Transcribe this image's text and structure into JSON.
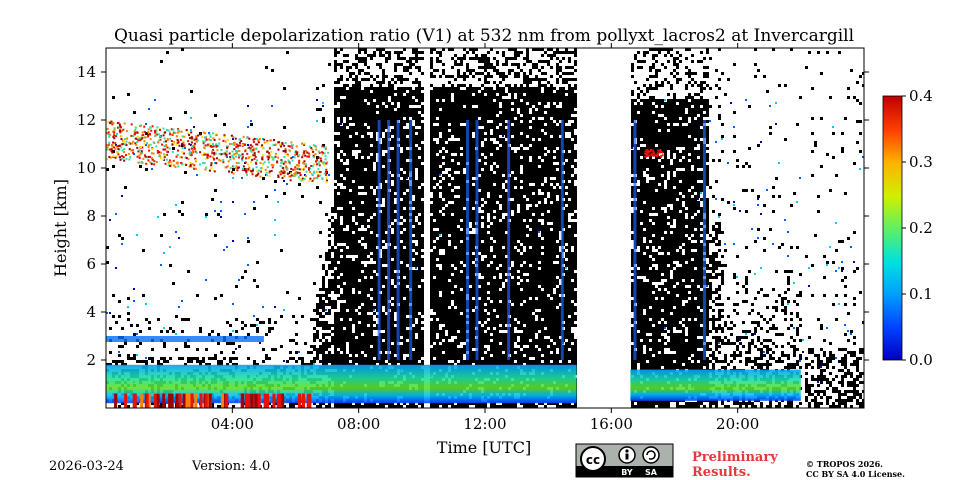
{
  "chart_data": {
    "type": "heatmap",
    "title": "Quasi particle depolarization ratio (V1) at 532 nm from pollyxt_lacros2 at Invercargill",
    "xlabel": "Time [UTC]",
    "ylabel": "Height [km]",
    "xlim_hours": [
      0,
      24
    ],
    "ylim_km": [
      0,
      15
    ],
    "x_ticks": [
      {
        "value": 4,
        "label": "04:00"
      },
      {
        "value": 8,
        "label": "08:00"
      },
      {
        "value": 12,
        "label": "12:00"
      },
      {
        "value": 16,
        "label": "16:00"
      },
      {
        "value": 20,
        "label": "20:00"
      }
    ],
    "y_ticks": [
      {
        "value": 2,
        "label": "2"
      },
      {
        "value": 4,
        "label": "4"
      },
      {
        "value": 6,
        "label": "6"
      },
      {
        "value": 8,
        "label": "8"
      },
      {
        "value": 10,
        "label": "10"
      },
      {
        "value": 12,
        "label": "12"
      },
      {
        "value": 14,
        "label": "14"
      }
    ],
    "colorbar": {
      "range": [
        0.0,
        0.4
      ],
      "ticks": [
        {
          "value": 0.0,
          "label": "0.0"
        },
        {
          "value": 0.1,
          "label": "0.1"
        },
        {
          "value": 0.2,
          "label": "0.2"
        },
        {
          "value": 0.3,
          "label": "0.3"
        },
        {
          "value": 0.4,
          "label": "0.4"
        }
      ],
      "colormap": "jet",
      "stops": [
        "#0000b0",
        "#0060ff",
        "#00c8ff",
        "#30e0a0",
        "#a0f020",
        "#ffe000",
        "#ff8000",
        "#e81000",
        "#a00000"
      ]
    },
    "features": [
      {
        "name": "cirrus layer",
        "time_range_h": [
          0.0,
          7.0
        ],
        "height_range_km": [
          10.2,
          12.0
        ],
        "value_range": [
          0.25,
          0.4
        ]
      },
      {
        "name": "boundary layer aerosol",
        "time_range_h": [
          0.0,
          23.5
        ],
        "height_range_km": [
          0.0,
          2.0
        ],
        "value_range": [
          0.05,
          0.2
        ]
      },
      {
        "name": "low depolarization cloud region",
        "time_range_h": [
          6.5,
          22.0
        ],
        "height_range_km": [
          2.0,
          15.0
        ],
        "value_range": [
          0.0,
          0.0
        ]
      },
      {
        "name": "residual high cloud",
        "time_range_h": [
          17.0,
          17.5
        ],
        "height_range_km": [
          10.5,
          10.8
        ],
        "value_range": [
          0.3,
          0.35
        ]
      }
    ],
    "no_data_gaps_h": [
      [
        10.05,
        10.2
      ],
      [
        14.9,
        15.15
      ],
      [
        15.15,
        16.55
      ]
    ]
  },
  "footer": {
    "date": "2026-03-24",
    "version": "Version: 4.0",
    "license_badge": [
      "BY",
      "SA"
    ],
    "preliminary_line1": "Preliminary",
    "preliminary_line2": "Results.",
    "copyright_line1": "© TROPOS 2026.",
    "copyright_line2": "CC BY SA 4.0 License."
  }
}
